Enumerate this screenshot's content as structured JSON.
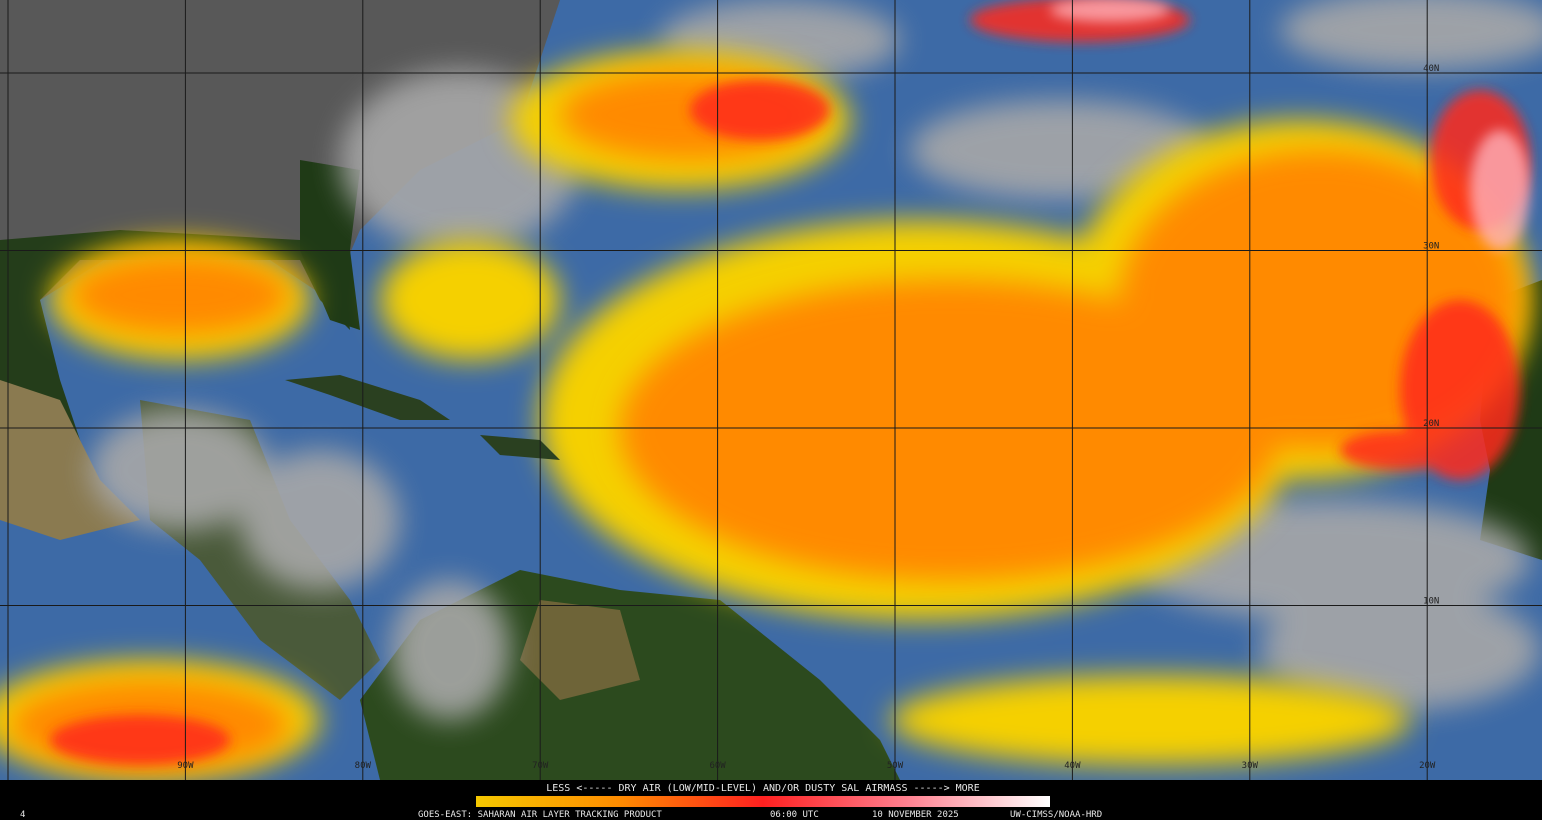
{
  "map": {
    "lat_labels": [
      "40N",
      "30N",
      "20N",
      "10N"
    ],
    "lon_labels": [
      "90W",
      "80W",
      "70W",
      "60W",
      "50W",
      "40W",
      "30W",
      "20W"
    ]
  },
  "legend": {
    "caption": "LESS <----- DRY AIR (LOW/MID-LEVEL) AND/OR DUSTY SAL AIRMASS -----> MORE",
    "corner": "4"
  },
  "footer": {
    "product": "GOES-EAST: SAHARAN AIR LAYER TRACKING PRODUCT",
    "time": "06:00 UTC",
    "date": "10 NOVEMBER 2025",
    "credit": "UW-CIMSS/NOAA-HRD"
  }
}
